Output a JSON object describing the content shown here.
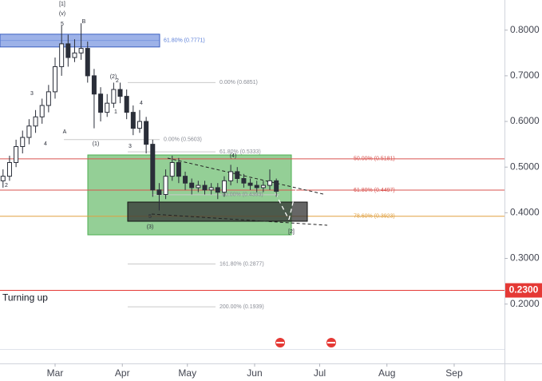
{
  "chart_data": {
    "type": "candlestick",
    "x": [
      -24,
      -21,
      -18,
      -15,
      -12,
      -9,
      -6,
      -3,
      0,
      3,
      6,
      9,
      12,
      15,
      18,
      21,
      24,
      27,
      30,
      33,
      36,
      39,
      42,
      45,
      48,
      51,
      54,
      57,
      60,
      63,
      66,
      69,
      72,
      75,
      78,
      81,
      84,
      87,
      90,
      93,
      96,
      99,
      102
    ],
    "open": [
      0.47,
      0.48,
      0.51,
      0.545,
      0.565,
      0.59,
      0.61,
      0.635,
      0.665,
      0.72,
      0.77,
      0.74,
      0.75,
      0.76,
      0.7,
      0.66,
      0.62,
      0.64,
      0.67,
      0.655,
      0.62,
      0.585,
      0.6,
      0.55,
      0.45,
      0.44,
      0.48,
      0.51,
      0.48,
      0.465,
      0.455,
      0.46,
      0.45,
      0.455,
      0.445,
      0.47,
      0.49,
      0.475,
      0.465,
      0.46,
      0.455,
      0.46,
      0.47
    ],
    "high": [
      0.495,
      0.525,
      0.56,
      0.58,
      0.605,
      0.625,
      0.65,
      0.68,
      0.74,
      0.81,
      0.79,
      0.78,
      0.815,
      0.775,
      0.715,
      0.675,
      0.66,
      0.685,
      0.685,
      0.67,
      0.635,
      0.625,
      0.61,
      0.56,
      0.465,
      0.495,
      0.525,
      0.52,
      0.49,
      0.475,
      0.47,
      0.47,
      0.465,
      0.465,
      0.48,
      0.505,
      0.5,
      0.485,
      0.475,
      0.47,
      0.47,
      0.495,
      0.475
    ],
    "low": [
      0.455,
      0.47,
      0.5,
      0.53,
      0.55,
      0.575,
      0.595,
      0.62,
      0.65,
      0.7,
      0.72,
      0.73,
      0.735,
      0.685,
      0.585,
      0.6,
      0.61,
      0.63,
      0.64,
      0.605,
      0.57,
      0.575,
      0.53,
      0.435,
      0.405,
      0.43,
      0.47,
      0.465,
      0.45,
      0.44,
      0.445,
      0.44,
      0.44,
      0.43,
      0.435,
      0.46,
      0.465,
      0.455,
      0.45,
      0.445,
      0.445,
      0.45,
      0.435
    ],
    "close": [
      0.48,
      0.51,
      0.545,
      0.565,
      0.59,
      0.61,
      0.635,
      0.665,
      0.72,
      0.77,
      0.74,
      0.75,
      0.76,
      0.7,
      0.66,
      0.62,
      0.64,
      0.67,
      0.655,
      0.62,
      0.585,
      0.6,
      0.55,
      0.45,
      0.44,
      0.48,
      0.51,
      0.48,
      0.465,
      0.455,
      0.46,
      0.45,
      0.455,
      0.445,
      0.47,
      0.49,
      0.475,
      0.465,
      0.46,
      0.455,
      0.46,
      0.47,
      0.447
    ],
    "color": "#2a2e39",
    "xlim": [
      -25.4,
      207.2
    ],
    "xticks": [
      {
        "value": 0,
        "label": "Mar"
      },
      {
        "value": 31,
        "label": "Apr"
      },
      {
        "value": 61,
        "label": "May"
      },
      {
        "value": 92,
        "label": "Jun"
      },
      {
        "value": 122,
        "label": "Jul"
      },
      {
        "value": 153,
        "label": "Aug"
      },
      {
        "value": 184,
        "label": "Sep"
      }
    ],
    "ylim": [
      0.07,
      0.866
    ],
    "yticks": [
      {
        "value": 0.2,
        "label": "0.2000"
      },
      {
        "value": 0.3,
        "label": "0.3000"
      },
      {
        "value": 0.4,
        "label": "0.4000"
      },
      {
        "value": 0.5,
        "label": "0.5000"
      },
      {
        "value": 0.6,
        "label": "0.6000"
      },
      {
        "value": 0.7,
        "label": "0.7000"
      },
      {
        "value": 0.8,
        "label": "0.8000"
      }
    ],
    "levels": [
      {
        "label": "61.80% (0.7771)",
        "value": 0.7771,
        "color": "#5b7fd8"
      },
      {
        "label": "0.00% (0.6851)",
        "value": 0.6851,
        "color": "#c9c9c9"
      },
      {
        "label": "0.00% (0.5603)",
        "value": 0.5603,
        "color": "#c9c9c9"
      },
      {
        "label": "61.80% (0.5333)",
        "value": 0.5333,
        "color": "#c9c9c9"
      },
      {
        "label": "50.00% (0.5181)",
        "value": 0.5181,
        "color": "#d9534f"
      },
      {
        "label": "61.80% (0.4497)",
        "value": 0.4497,
        "color": "#d9534f"
      },
      {
        "label": "00.00% (0.4393)",
        "value": 0.4393,
        "color": "#c9c9c9"
      },
      {
        "label": "78.60% (0.3923)",
        "value": 0.3923,
        "color": "#e0a040"
      },
      {
        "label": "161.80% (0.2877)",
        "value": 0.2877,
        "color": "#c9c9c9"
      },
      {
        "label": "200.00% (0.1939)",
        "value": 0.1939,
        "color": "#c9c9c9"
      }
    ],
    "alert": {
      "label": "Turning up",
      "value": 0.23,
      "price_label": "0.2300",
      "color": "#e53935"
    },
    "wave_labels": [
      "[1]",
      "(v)",
      "5",
      "B",
      "3",
      "4",
      "A",
      "(2)",
      "2",
      "1",
      "4",
      "(1)",
      "3",
      "2",
      "(4)",
      "5",
      "(3)",
      "[2]"
    ]
  }
}
